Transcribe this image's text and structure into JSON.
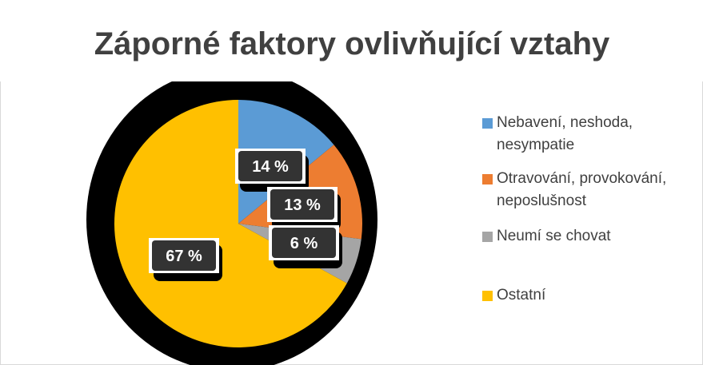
{
  "chart_data": {
    "type": "pie",
    "title": "Záporné faktory ovlivňující vztahy",
    "categories": [
      "Nebavení, neshoda, nesympatie",
      "Otravování, provokování, neposlušnost",
      "Neumí se chovat",
      "Ostatní"
    ],
    "values": [
      14,
      13,
      6,
      67
    ],
    "value_labels": [
      "14 %",
      "13 %",
      "6 %",
      "67 %"
    ],
    "colors": [
      "#5b9bd5",
      "#ed7d31",
      "#a5a5a5",
      "#ffc000"
    ],
    "legend": "right"
  }
}
